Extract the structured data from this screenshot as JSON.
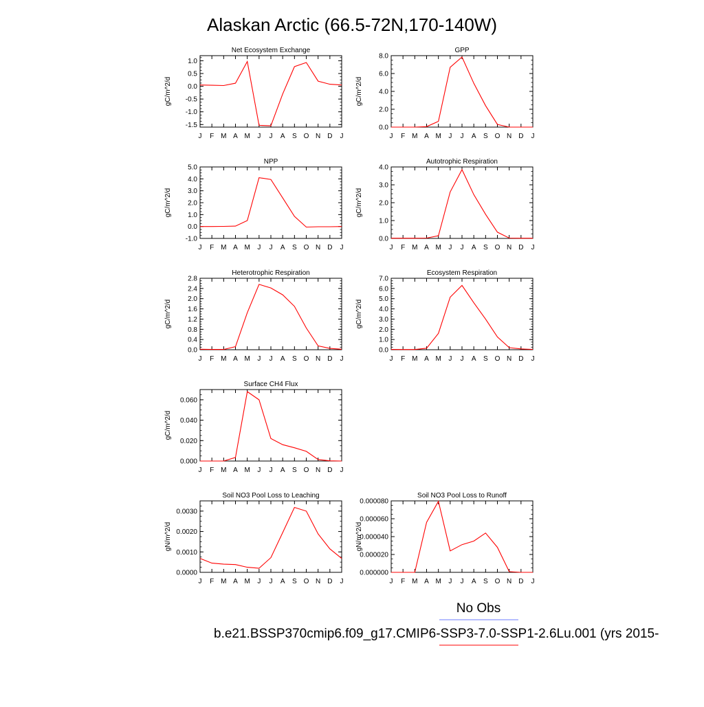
{
  "figure": {
    "title": "Alaskan Arctic (66.5-72N,170-140W)",
    "legend_obs_label": "No Obs",
    "legend_case_label": "b.e21.BSSP370cmip6.f09_g17.CMIP6-SSP3-7.0-SSP1-2.6Lu.001 (yrs 2015-",
    "colors": {
      "model": "#ff0000",
      "obs": "#6e7dff"
    }
  },
  "chart_data": [
    {
      "type": "line",
      "title": "Net Ecosystem Exchange",
      "ylabel": "gC/m^2/d",
      "x": [
        "J",
        "F",
        "M",
        "A",
        "M",
        "J",
        "J",
        "A",
        "S",
        "O",
        "N",
        "D",
        "J"
      ],
      "ylim": [
        -1.6,
        1.2
      ],
      "yticks": [
        "1.0",
        "0.5",
        "0.0",
        "-0.5",
        "-1.0",
        "-1.5"
      ],
      "series": [
        {
          "values": [
            0.05,
            0.04,
            0.03,
            0.12,
            0.97,
            -1.53,
            -1.55,
            -0.3,
            0.77,
            0.93,
            0.2,
            0.08,
            0.05
          ]
        }
      ]
    },
    {
      "type": "line",
      "title": "GPP",
      "ylabel": "gC/m^2/d",
      "x": [
        "J",
        "F",
        "M",
        "A",
        "M",
        "J",
        "J",
        "A",
        "S",
        "O",
        "N",
        "D",
        "J"
      ],
      "ylim": [
        0,
        8
      ],
      "yticks": [
        "8.0",
        "6.0",
        "4.0",
        "2.0",
        "0.0"
      ],
      "series": [
        {
          "values": [
            0,
            0,
            0,
            0.05,
            0.65,
            6.7,
            7.85,
            4.9,
            2.4,
            0.3,
            0,
            0,
            0
          ]
        }
      ]
    },
    {
      "type": "line",
      "title": "NPP",
      "ylabel": "gC/m^2/d",
      "x": [
        "J",
        "F",
        "M",
        "A",
        "M",
        "J",
        "J",
        "A",
        "S",
        "O",
        "N",
        "D",
        "J"
      ],
      "ylim": [
        -1,
        5
      ],
      "yticks": [
        "5.0",
        "4.0",
        "3.0",
        "2.0",
        "1.0",
        "0.0",
        "-1.0"
      ],
      "series": [
        {
          "values": [
            0,
            0,
            0.01,
            0.03,
            0.5,
            4.1,
            3.95,
            2.4,
            0.85,
            -0.05,
            -0.02,
            -0.02,
            0
          ]
        }
      ]
    },
    {
      "type": "line",
      "title": "Autotrophic Respiration",
      "ylabel": "gC/m^2/d",
      "x": [
        "J",
        "F",
        "M",
        "A",
        "M",
        "J",
        "J",
        "A",
        "S",
        "O",
        "N",
        "D",
        "J"
      ],
      "ylim": [
        0,
        4
      ],
      "yticks": [
        "4.0",
        "3.0",
        "2.0",
        "1.0",
        "0.0"
      ],
      "series": [
        {
          "values": [
            0.01,
            0.01,
            0.01,
            0.02,
            0.15,
            2.6,
            3.85,
            2.45,
            1.35,
            0.35,
            0.02,
            0.01,
            0.01
          ]
        }
      ]
    },
    {
      "type": "line",
      "title": "Heterotrophic Respiration",
      "ylabel": "gC/m^2/d",
      "x": [
        "J",
        "F",
        "M",
        "A",
        "M",
        "J",
        "J",
        "A",
        "S",
        "O",
        "N",
        "D",
        "J"
      ],
      "ylim": [
        0,
        2.8
      ],
      "yticks": [
        "2.8",
        "2.4",
        "2.0",
        "1.6",
        "1.2",
        "0.8",
        "0.4",
        "0.0"
      ],
      "series": [
        {
          "values": [
            0.02,
            0.01,
            0.01,
            0.12,
            1.45,
            2.56,
            2.42,
            2.15,
            1.7,
            0.85,
            0.15,
            0.05,
            0.02
          ]
        }
      ]
    },
    {
      "type": "line",
      "title": "Ecosystem Respiration",
      "ylabel": "gC/m^2/d",
      "x": [
        "J",
        "F",
        "M",
        "A",
        "M",
        "J",
        "J",
        "A",
        "S",
        "O",
        "N",
        "D",
        "J"
      ],
      "ylim": [
        0,
        7
      ],
      "yticks": [
        "7.0",
        "6.0",
        "5.0",
        "4.0",
        "3.0",
        "2.0",
        "1.0",
        "0.0"
      ],
      "series": [
        {
          "values": [
            0.03,
            0.02,
            0.02,
            0.15,
            1.6,
            5.15,
            6.3,
            4.6,
            3.0,
            1.25,
            0.2,
            0.08,
            0.03
          ]
        }
      ]
    },
    {
      "type": "line",
      "title": "Surface CH4 Flux",
      "ylabel": "gC/m^2/d",
      "x": [
        "J",
        "F",
        "M",
        "A",
        "M",
        "J",
        "J",
        "A",
        "S",
        "O",
        "N",
        "D",
        "J"
      ],
      "ylim": [
        0,
        0.07
      ],
      "yticks": [
        "0.060",
        "0.040",
        "0.020",
        "0.000"
      ],
      "series": [
        {
          "values": [
            0,
            0,
            0,
            0.0035,
            0.068,
            0.06,
            0.022,
            0.016,
            0.013,
            0.0095,
            0.0015,
            0.0002,
            0
          ]
        }
      ]
    },
    {
      "type": "line",
      "title": "Soil NO3 Pool Loss to Leaching",
      "ylabel": "gN/m^2/d",
      "x": [
        "J",
        "F",
        "M",
        "A",
        "M",
        "J",
        "J",
        "A",
        "S",
        "O",
        "N",
        "D",
        "J"
      ],
      "ylim": [
        0,
        0.0035
      ],
      "yticks": [
        "0.0030",
        "0.0020",
        "0.0010",
        "0.0000"
      ],
      "series": [
        {
          "values": [
            0.00068,
            0.00045,
            0.0004,
            0.00038,
            0.00025,
            0.0002,
            0.00072,
            0.00195,
            0.00318,
            0.003,
            0.00188,
            0.00115,
            0.00068
          ]
        }
      ]
    },
    {
      "type": "line",
      "title": "Soil NO3 Pool Loss to Runoff",
      "ylabel": "gN/m^2/d",
      "x": [
        "J",
        "F",
        "M",
        "A",
        "M",
        "J",
        "J",
        "A",
        "S",
        "O",
        "N",
        "D",
        "J"
      ],
      "ylim": [
        0,
        8e-05
      ],
      "yticks": [
        "0.000080",
        "0.000060",
        "0.000040",
        "0.000020",
        "0.000000"
      ],
      "series": [
        {
          "values": [
            0,
            0,
            0,
            5.6e-05,
            7.95e-05,
            2.4e-05,
            3.1e-05,
            3.5e-05,
            4.4e-05,
            2.8e-05,
            8e-07,
            0,
            0
          ]
        }
      ]
    }
  ]
}
